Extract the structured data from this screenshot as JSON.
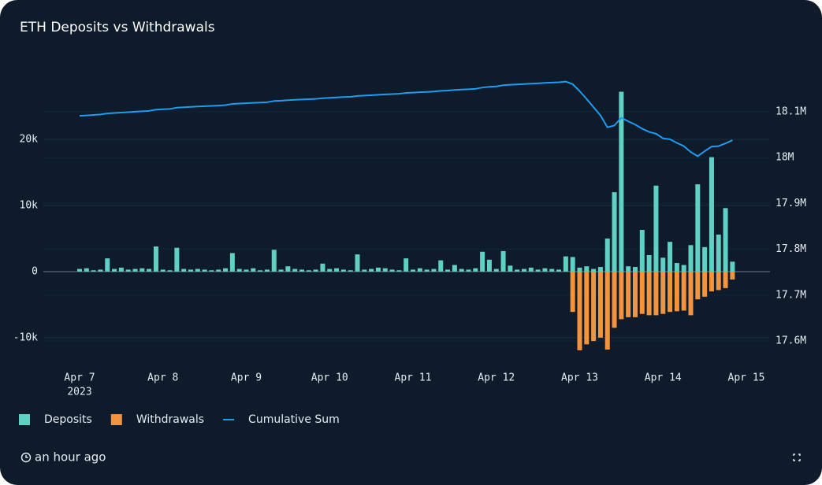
{
  "chart_data": {
    "type": "bar-line",
    "title": "ETH Deposits vs Withdrawals",
    "categories": [
      "Apr 7",
      null,
      null,
      null,
      null,
      null,
      null,
      null,
      null,
      null,
      null,
      null,
      "Apr 8",
      null,
      null,
      null,
      null,
      null,
      null,
      null,
      null,
      null,
      null,
      null,
      "Apr 9",
      null,
      null,
      null,
      null,
      null,
      null,
      null,
      null,
      null,
      null,
      null,
      "Apr 10",
      null,
      null,
      null,
      null,
      null,
      null,
      null,
      null,
      null,
      null,
      null,
      "Apr 11",
      null,
      null,
      null,
      null,
      null,
      null,
      null,
      null,
      null,
      null,
      null,
      "Apr 12",
      null,
      null,
      null,
      null,
      null,
      null,
      null,
      null,
      null,
      null,
      null,
      "Apr 13",
      null,
      null,
      null,
      null,
      null,
      null,
      null,
      null,
      null,
      null,
      null,
      "Apr 14",
      null,
      null,
      null,
      null,
      null,
      null,
      null,
      null,
      null,
      null,
      null,
      "Apr 15"
    ],
    "x_year": "2023",
    "series": [
      {
        "name": "Deposits",
        "color": "#5fd0c4",
        "kind": "bar",
        "values": [
          400,
          500,
          200,
          300,
          2000,
          400,
          600,
          300,
          400,
          500,
          400,
          3800,
          300,
          200,
          3600,
          400,
          300,
          400,
          300,
          200,
          300,
          500,
          2800,
          400,
          300,
          500,
          200,
          300,
          3300,
          300,
          800,
          400,
          300,
          200,
          300,
          1200,
          400,
          500,
          300,
          200,
          2600,
          300,
          400,
          600,
          500,
          300,
          200,
          2000,
          300,
          500,
          300,
          400,
          1700,
          300,
          1000,
          400,
          300,
          500,
          3000,
          1800,
          400,
          3100,
          900,
          300,
          400,
          600,
          300,
          500,
          400,
          300,
          2300,
          2200,
          600,
          800,
          400,
          700,
          5000,
          12000,
          27200,
          800,
          700,
          6300,
          2500,
          13000,
          2100,
          4500,
          1300,
          1000,
          4000,
          13200,
          3700,
          17300,
          5600,
          9600,
          1500,
          null,
          null
        ]
      },
      {
        "name": "Withdrawals",
        "color": "#f2933f",
        "kind": "bar",
        "values": [
          null,
          null,
          null,
          null,
          null,
          null,
          null,
          null,
          null,
          null,
          null,
          null,
          null,
          null,
          null,
          null,
          null,
          null,
          null,
          null,
          null,
          null,
          null,
          null,
          null,
          null,
          null,
          null,
          null,
          null,
          null,
          null,
          null,
          null,
          null,
          null,
          null,
          null,
          null,
          null,
          null,
          null,
          null,
          null,
          null,
          null,
          null,
          null,
          null,
          null,
          null,
          null,
          null,
          null,
          null,
          null,
          null,
          null,
          null,
          null,
          null,
          null,
          null,
          null,
          null,
          null,
          null,
          null,
          null,
          null,
          null,
          -6100,
          -11900,
          -11000,
          -10500,
          -10000,
          -11800,
          -8500,
          -7200,
          -6900,
          -6900,
          -6400,
          -6600,
          -6600,
          -6400,
          -6100,
          -6000,
          -5900,
          -6600,
          -4200,
          -3800,
          -3000,
          -2800,
          -2500,
          -1200,
          null,
          null
        ]
      },
      {
        "name": "Cumulative Sum",
        "color": "#1f9cf0",
        "kind": "line",
        "axis": "y2",
        "values": [
          18091000,
          18092000,
          18093100,
          18094100,
          18096200,
          18097200,
          18098200,
          18099100,
          18100000,
          18101000,
          18101900,
          18104600,
          18105400,
          18106000,
          18109000,
          18109800,
          18110600,
          18111400,
          18112100,
          18112800,
          18113500,
          18114400,
          18117100,
          18117900,
          18118600,
          18119500,
          18120100,
          18120800,
          18123400,
          18124100,
          18125200,
          18126000,
          18126700,
          18127300,
          18128000,
          18129600,
          18130400,
          18131300,
          18132000,
          18132600,
          18134500,
          18135200,
          18136000,
          18137000,
          18137900,
          18138600,
          18139200,
          18141000,
          18141700,
          18142600,
          18143300,
          18144100,
          18145600,
          18146300,
          18147600,
          18148400,
          18149100,
          18150000,
          18152800,
          18154500,
          18155300,
          18157800,
          18158900,
          18159600,
          18160400,
          18161300,
          18162000,
          18162900,
          18163600,
          18164300,
          18165800,
          18160000,
          18145000,
          18128000,
          18110000,
          18092000,
          18066000,
          18070000,
          18087000,
          18079000,
          18072000,
          18063000,
          18056000,
          18052000,
          18042000,
          18040000,
          18032000,
          18025000,
          18012000,
          18003000,
          18014000,
          18024000,
          18025000,
          18031000,
          18038000,
          null,
          null
        ]
      }
    ],
    "ylim": [
      -13700,
      29760
    ],
    "yticks": [
      {
        "value": -10000,
        "label": "-10k"
      },
      0,
      {
        "value": 10000,
        "label": "10k"
      },
      {
        "value": 20000,
        "label": "20k"
      }
    ],
    "y2lim": [
      17553700,
      18180600
    ],
    "y2ticks": [
      {
        "value": 17600000,
        "label": "17.6M"
      },
      {
        "value": 17700000,
        "label": "17.7M"
      },
      {
        "value": 17800000,
        "label": "17.8M"
      },
      {
        "value": 17900000,
        "label": "17.9M"
      },
      {
        "value": 18000000,
        "label": "18M"
      },
      {
        "value": 18100000,
        "label": "18.1M"
      }
    ],
    "grid": true,
    "legend": "bottom-left"
  },
  "footer_text": "an hour ago"
}
